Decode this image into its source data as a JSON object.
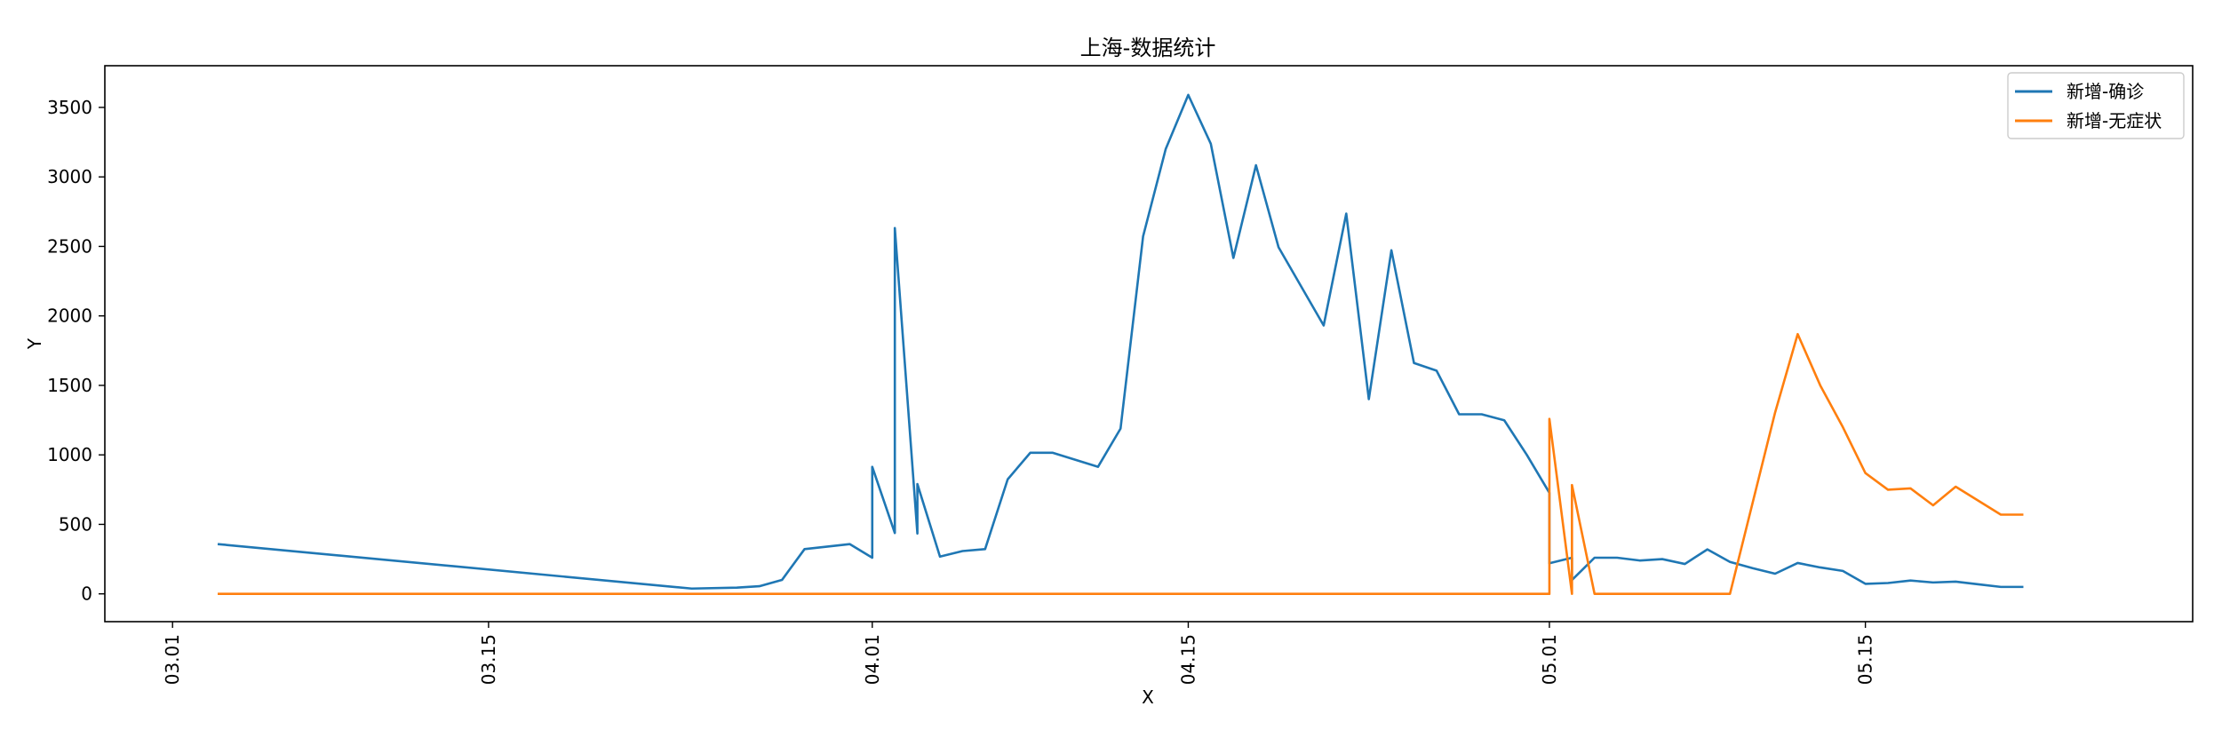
{
  "chart_data": {
    "type": "line",
    "title": "上海-数据统计",
    "xlabel": "X",
    "ylabel": "Y",
    "ylim": [
      -200,
      3800
    ],
    "xlim_days": [
      -3.0,
      89.5
    ],
    "x_ticks": [
      "03.01",
      "03.15",
      "04.01",
      "04.15",
      "05.01",
      "05.15"
    ],
    "y_ticks": [
      0,
      500,
      1000,
      1500,
      2000,
      2500,
      3000,
      3500
    ],
    "legend_position": "top-right",
    "grid": false,
    "series": [
      {
        "name": "新增-确诊",
        "color": "#1f77b4",
        "points": [
          [
            "03.03",
            358
          ],
          [
            "03.24",
            38
          ],
          [
            "03.26",
            45
          ],
          [
            "03.27",
            55
          ],
          [
            "03.28",
            100
          ],
          [
            "03.29",
            322
          ],
          [
            "03.31",
            358
          ],
          [
            "04.01",
            260
          ],
          [
            "04.01",
            914
          ],
          [
            "04.02",
            438
          ],
          [
            "04.02",
            2632
          ],
          [
            "04.03",
            434
          ],
          [
            "04.03",
            790
          ],
          [
            "04.04",
            268
          ],
          [
            "04.05",
            308
          ],
          [
            "04.06",
            322
          ],
          [
            "04.07",
            824
          ],
          [
            "04.08",
            1015
          ],
          [
            "04.09",
            1015
          ],
          [
            "04.11",
            914
          ],
          [
            "04.12",
            1189
          ],
          [
            "04.13",
            2573
          ],
          [
            "04.14",
            3200
          ],
          [
            "04.15",
            3590
          ],
          [
            "04.16",
            3238
          ],
          [
            "04.17",
            2417
          ],
          [
            "04.18",
            3084
          ],
          [
            "04.19",
            2494
          ],
          [
            "04.21",
            1931
          ],
          [
            "04.22",
            2736
          ],
          [
            "04.23",
            1401
          ],
          [
            "04.24",
            2472
          ],
          [
            "04.25",
            1661
          ],
          [
            "04.26",
            1606
          ],
          [
            "04.27",
            1292
          ],
          [
            "04.28",
            1292
          ],
          [
            "04.29",
            1249
          ],
          [
            "04.30",
            1000
          ],
          [
            "05.01",
            727
          ],
          [
            "05.01",
            220
          ],
          [
            "05.02",
            260
          ],
          [
            "05.02",
            100
          ],
          [
            "05.03",
            260
          ],
          [
            "05.04",
            260
          ],
          [
            "05.05",
            240
          ],
          [
            "05.06",
            250
          ],
          [
            "05.07",
            215
          ],
          [
            "05.08",
            320
          ],
          [
            "05.09",
            230
          ],
          [
            "05.10",
            185
          ],
          [
            "05.11",
            145
          ],
          [
            "05.12",
            222
          ],
          [
            "05.13",
            190
          ],
          [
            "05.14",
            165
          ],
          [
            "05.15",
            72
          ],
          [
            "05.16",
            78
          ],
          [
            "05.17",
            96
          ],
          [
            "05.18",
            82
          ],
          [
            "05.19",
            88
          ],
          [
            "05.20",
            69
          ],
          [
            "05.21",
            50
          ],
          [
            "05.22",
            50
          ]
        ]
      },
      {
        "name": "新增-无症状",
        "color": "#ff7f0e",
        "points": [
          [
            "03.03",
            0
          ],
          [
            "05.01",
            0
          ],
          [
            "05.01",
            1259
          ],
          [
            "05.02",
            0
          ],
          [
            "05.02",
            783
          ],
          [
            "05.03",
            0
          ],
          [
            "05.09",
            0
          ],
          [
            "05.11",
            1305
          ],
          [
            "05.12",
            1869
          ],
          [
            "05.13",
            1500
          ],
          [
            "05.14",
            1200
          ],
          [
            "05.15",
            869
          ],
          [
            "05.16",
            749
          ],
          [
            "05.17",
            759
          ],
          [
            "05.18",
            637
          ],
          [
            "05.19",
            771
          ],
          [
            "05.21",
            570
          ],
          [
            "05.22",
            570
          ]
        ]
      }
    ]
  }
}
